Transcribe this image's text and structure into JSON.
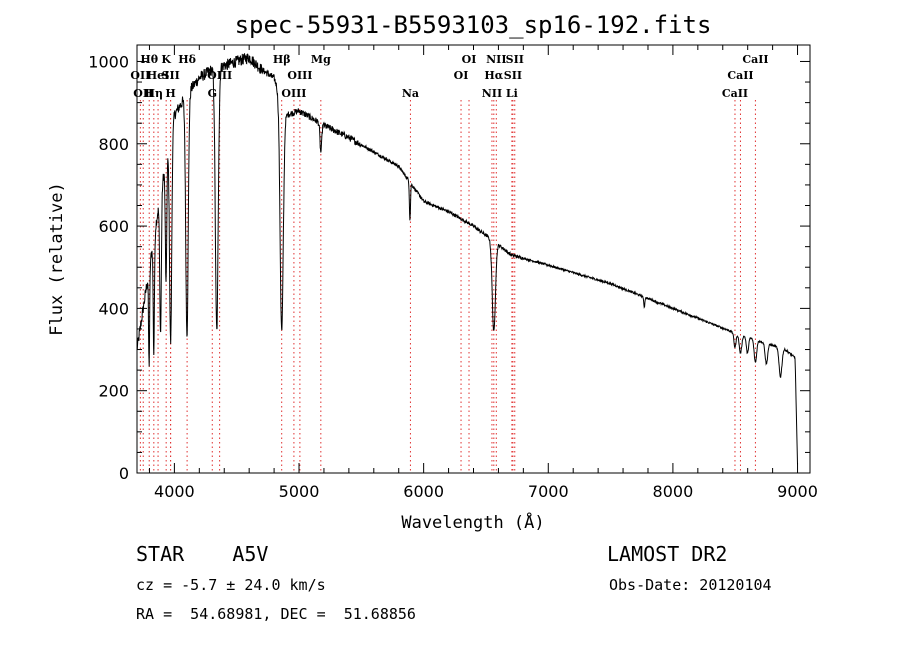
{
  "chart_data": {
    "type": "line",
    "title": "spec-55931-B5593103_sp16-192.fits",
    "xlabel": "Wavelength (Å)",
    "ylabel": "Flux (relative)",
    "xlim": [
      3700,
      9100
    ],
    "ylim": [
      0,
      1040
    ],
    "xticks": [
      4000,
      5000,
      6000,
      7000,
      8000,
      9000
    ],
    "yticks": [
      0,
      200,
      400,
      600,
      800,
      1000
    ],
    "grid": false,
    "series": [
      {
        "name": "",
        "continuum": {
          "x": [
            3700,
            3900,
            4000,
            4100,
            4200,
            4300,
            4400,
            4500,
            4600,
            4700,
            4800,
            4900,
            5000,
            5200,
            5400,
            5600,
            5800,
            6000,
            6200,
            6400,
            6600,
            6700,
            7000,
            7500,
            8000,
            8500,
            8900,
            8980,
            9000
          ],
          "y": [
            300,
            700,
            870,
            920,
            960,
            980,
            990,
            1000,
            1010,
            980,
            960,
            870,
            880,
            845,
            815,
            780,
            745,
            660,
            635,
            600,
            555,
            530,
            505,
            460,
            400,
            340,
            300,
            280,
            20
          ]
        },
        "absorption_lines": [
          {
            "x": 3797,
            "depth": 230,
            "width": 6
          },
          {
            "x": 3835,
            "depth": 280,
            "width": 7
          },
          {
            "x": 3889,
            "depth": 340,
            "width": 9
          },
          {
            "x": 3933,
            "depth": 300,
            "width": 8
          },
          {
            "x": 3970,
            "depth": 500,
            "width": 12
          },
          {
            "x": 4101,
            "depth": 580,
            "width": 14
          },
          {
            "x": 4340,
            "depth": 640,
            "width": 16
          },
          {
            "x": 4861,
            "depth": 560,
            "width": 18
          },
          {
            "x": 5175,
            "depth": 70,
            "width": 10
          },
          {
            "x": 5890,
            "depth": 90,
            "width": 6
          },
          {
            "x": 6563,
            "depth": 220,
            "width": 18
          },
          {
            "x": 7770,
            "depth": 25,
            "width": 6
          },
          {
            "x": 8498,
            "depth": 35,
            "width": 12
          },
          {
            "x": 8542,
            "depth": 45,
            "width": 14
          },
          {
            "x": 8598,
            "depth": 40,
            "width": 12
          },
          {
            "x": 8662,
            "depth": 55,
            "width": 14
          },
          {
            "x": 8750,
            "depth": 50,
            "width": 14
          },
          {
            "x": 8863,
            "depth": 70,
            "width": 16
          }
        ]
      }
    ],
    "line_markers": [
      {
        "x": 3727,
        "label": "OII",
        "row": 2
      },
      {
        "x": 3750,
        "label": "OII",
        "row": 3
      },
      {
        "x": 3798,
        "label": "Hθ",
        "row": 1
      },
      {
        "x": 3835,
        "label": "Hη",
        "row": 3
      },
      {
        "x": 3869,
        "label": "HeI",
        "row": 2
      },
      {
        "x": 3934,
        "label": "K",
        "row": 1
      },
      {
        "x": 3969,
        "label": "H",
        "row": 3
      },
      {
        "x": 3970,
        "label": "SII",
        "row": 2
      },
      {
        "x": 4102,
        "label": "Hδ",
        "row": 1
      },
      {
        "x": 4304,
        "label": "G",
        "row": 3
      },
      {
        "x": 4363,
        "label": "OIII",
        "row": 2
      },
      {
        "x": 4861,
        "label": "Hβ",
        "row": 1
      },
      {
        "x": 4959,
        "label": "OIII",
        "row": 3
      },
      {
        "x": 5007,
        "label": "OIII",
        "row": 2
      },
      {
        "x": 5175,
        "label": "Mg",
        "row": 1
      },
      {
        "x": 5894,
        "label": "Na",
        "row": 3
      },
      {
        "x": 6300,
        "label": "OI",
        "row": 2
      },
      {
        "x": 6364,
        "label": "OI",
        "row": 1
      },
      {
        "x": 6548,
        "label": "NII",
        "row": 3
      },
      {
        "x": 6563,
        "label": "Hα",
        "row": 2
      },
      {
        "x": 6583,
        "label": "NII",
        "row": 1
      },
      {
        "x": 6708,
        "label": "Li",
        "row": 3
      },
      {
        "x": 6716,
        "label": "SII",
        "row": 2
      },
      {
        "x": 6731,
        "label": "SII",
        "row": 1
      },
      {
        "x": 8498,
        "label": "CaII",
        "row": 3
      },
      {
        "x": 8542,
        "label": "CaII",
        "row": 2
      },
      {
        "x": 8662,
        "label": "CaII",
        "row": 1
      }
    ],
    "marker_color": "#e03030"
  },
  "info": {
    "object_class": "STAR    A5V",
    "survey": "LAMOST DR2",
    "redshift": "cz = -5.7 ± 24.0 km/s",
    "obs_date": "Obs-Date: 20120104",
    "coords": "RA =  54.68981, DEC =  51.68856"
  }
}
